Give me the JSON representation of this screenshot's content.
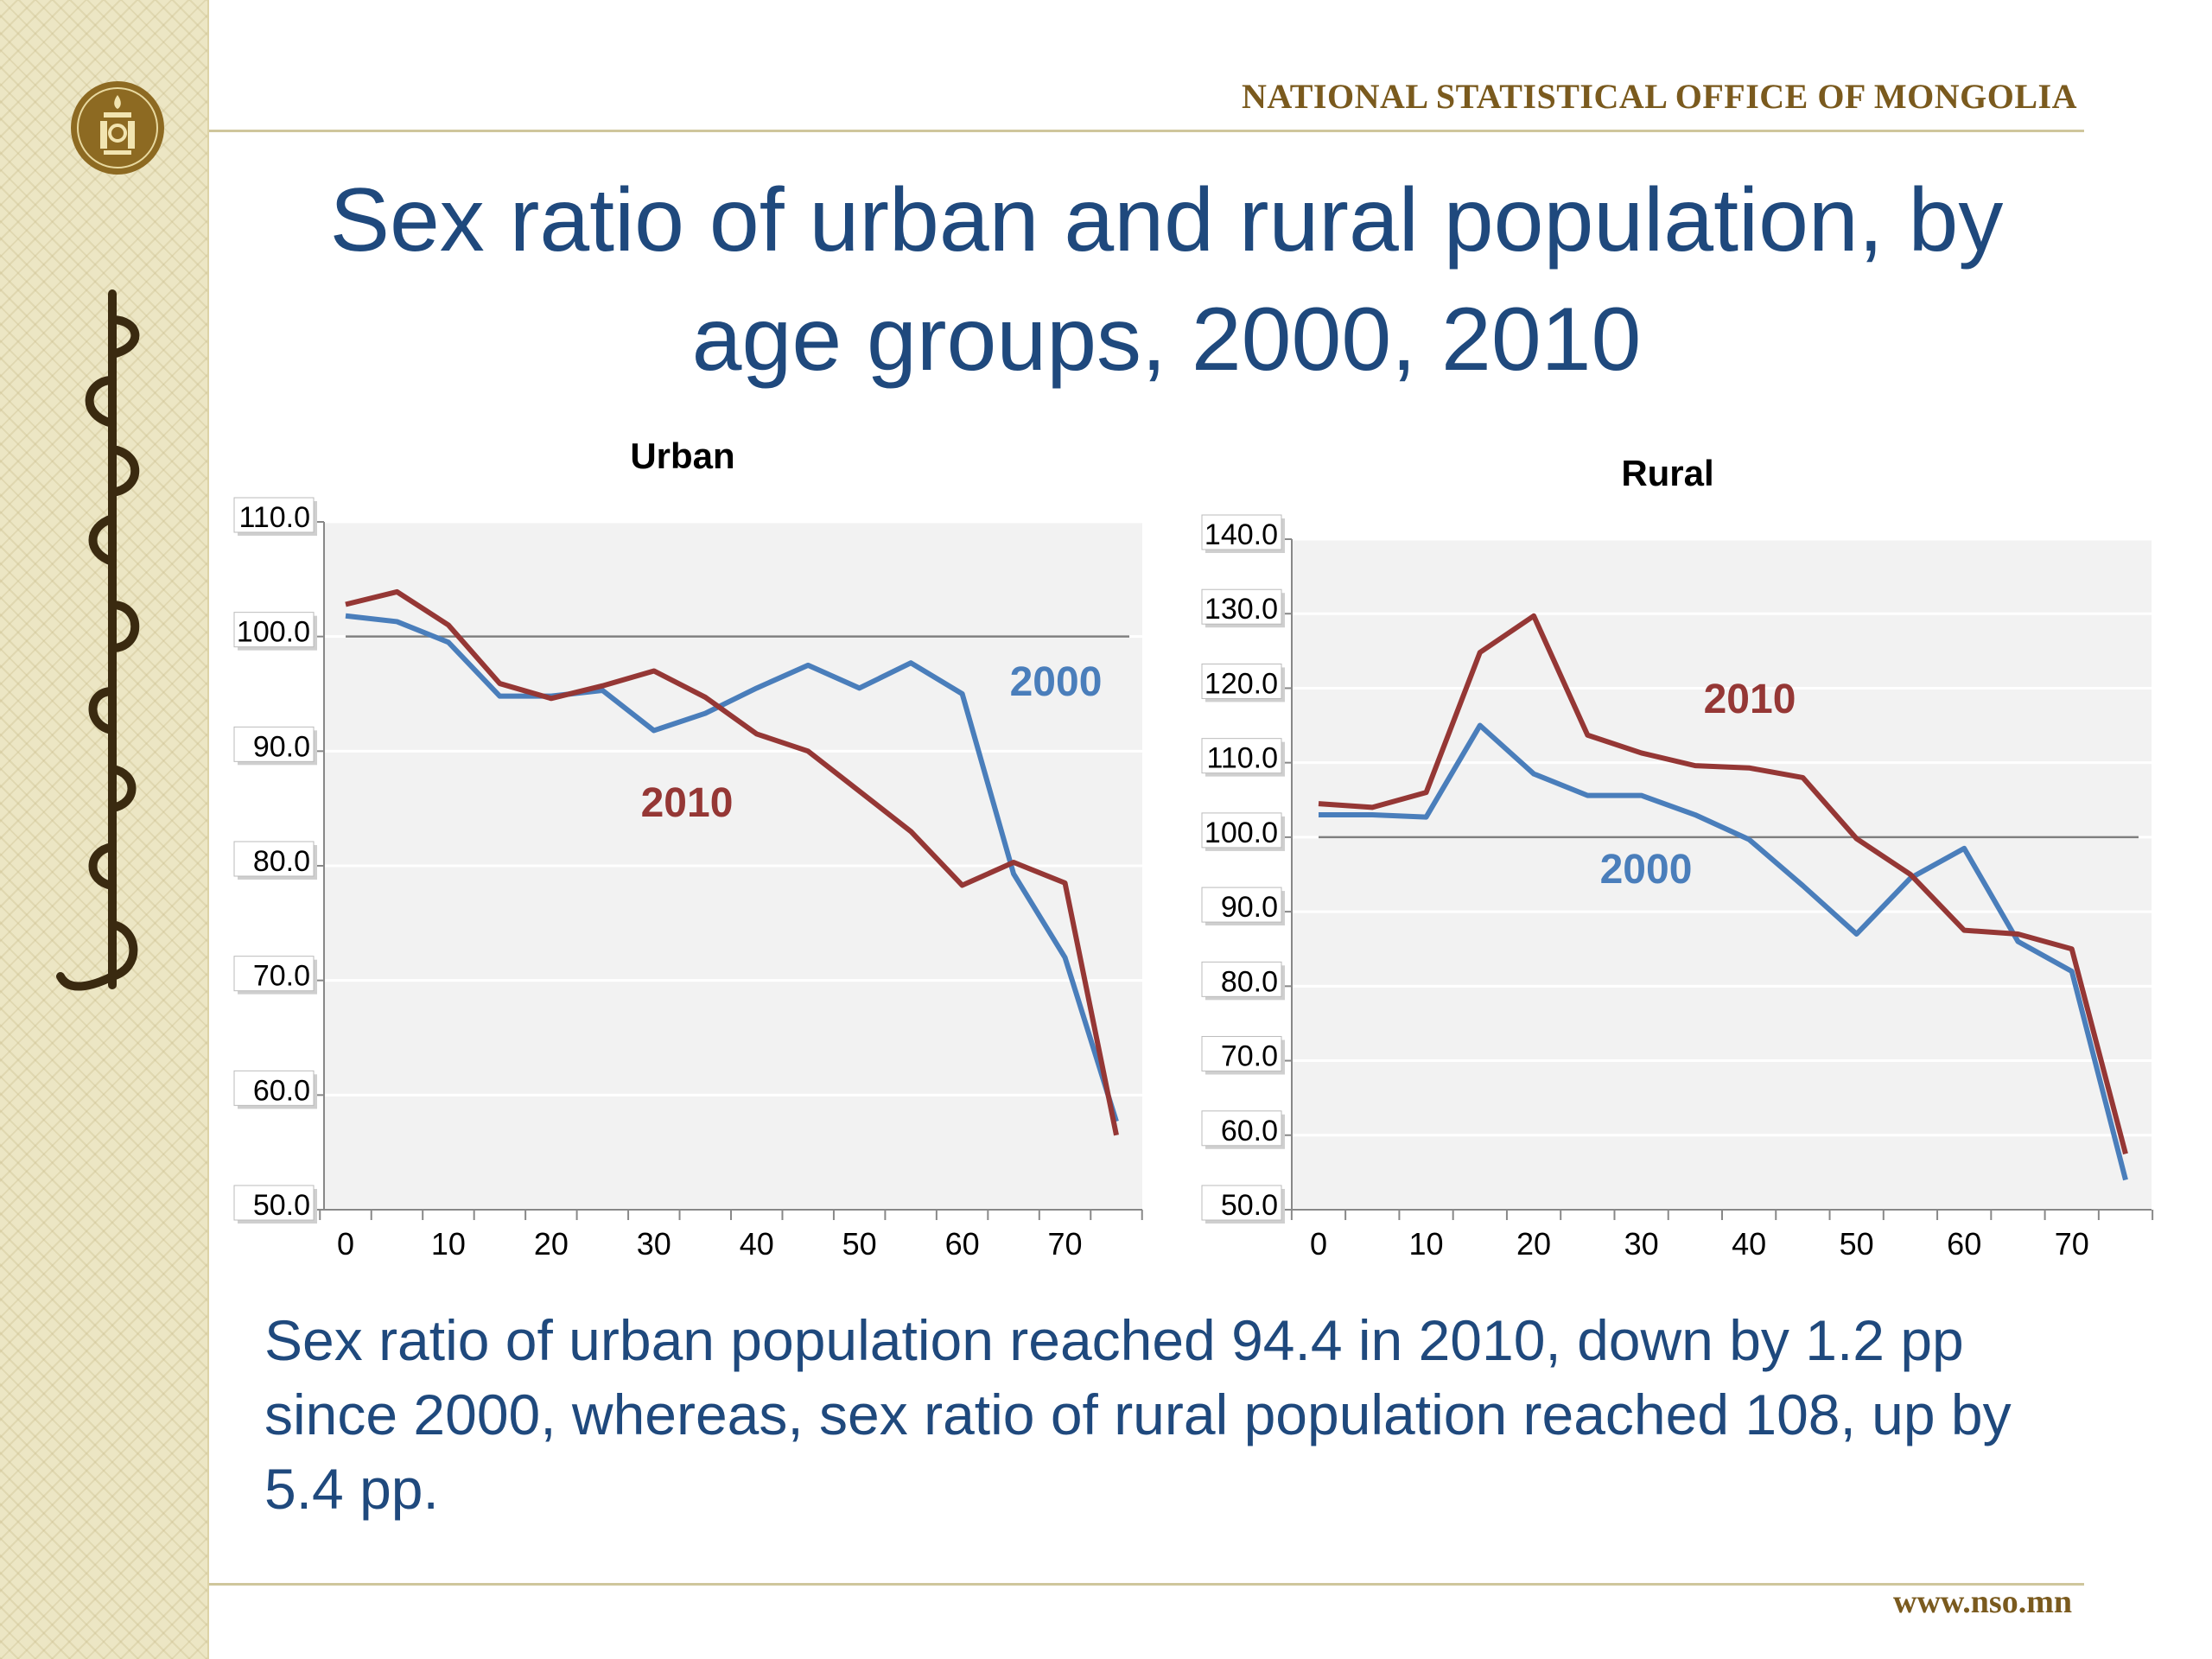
{
  "header": {
    "organization": "NATIONAL STATISTICAL OFFICE OF MONGOLIA",
    "logo_icon": "soyombo-seal-icon",
    "sidebar_decoration": "mongolian-script-ornament"
  },
  "title_line1": "Sex ratio of urban and rural population, by",
  "title_line2": "age groups, 2000, 2010",
  "colors": {
    "series_2000": "#4a7ebb",
    "series_2010": "#953735",
    "text_blue": "#1f497d",
    "gold": "#7a5a1e"
  },
  "chart_data": [
    {
      "type": "line",
      "title": "Urban",
      "x": [
        0,
        5,
        10,
        15,
        20,
        25,
        30,
        35,
        40,
        45,
        50,
        55,
        60,
        65,
        70,
        75
      ],
      "x_ticks": [
        "0",
        "10",
        "20",
        "30",
        "40",
        "50",
        "60",
        "70"
      ],
      "y_ticks": [
        "50.0",
        "60.0",
        "70.0",
        "80.0",
        "90.0",
        "100.0",
        "110.0"
      ],
      "ylim": [
        50,
        110
      ],
      "reference_line": 100,
      "grid": true,
      "series": [
        {
          "name": "2000",
          "color": "#4a7ebb",
          "values": [
            101.8,
            101.3,
            99.5,
            94.8,
            94.8,
            95.3,
            91.8,
            93.3,
            95.5,
            97.5,
            95.5,
            97.7,
            95.0,
            79.3,
            72.0,
            57.7
          ]
        },
        {
          "name": "2010",
          "color": "#953735",
          "values": [
            102.8,
            103.9,
            101.0,
            95.9,
            94.6,
            95.7,
            97.0,
            94.7,
            91.5,
            90.0,
            86.5,
            83.0,
            78.3,
            80.3,
            78.5,
            56.5
          ]
        }
      ]
    },
    {
      "type": "line",
      "title": "Rural",
      "x": [
        0,
        5,
        10,
        15,
        20,
        25,
        30,
        35,
        40,
        45,
        50,
        55,
        60,
        65,
        70,
        75
      ],
      "x_ticks": [
        "0",
        "10",
        "20",
        "30",
        "40",
        "50",
        "60",
        "70"
      ],
      "y_ticks": [
        "50.0",
        "60.0",
        "70.0",
        "80.0",
        "90.0",
        "100.0",
        "110.0",
        "120.0",
        "130.0",
        "140.0"
      ],
      "ylim": [
        50,
        140
      ],
      "reference_line": 100,
      "grid": true,
      "series": [
        {
          "name": "2000",
          "color": "#4a7ebb",
          "values": [
            103.0,
            103.0,
            102.7,
            115.0,
            108.5,
            105.6,
            105.6,
            103.0,
            99.7,
            93.5,
            87.0,
            94.5,
            98.5,
            86.0,
            82.0,
            54.0
          ]
        },
        {
          "name": "2010",
          "color": "#953735",
          "values": [
            104.5,
            104.0,
            106.0,
            124.8,
            129.7,
            113.7,
            111.3,
            109.6,
            109.3,
            108.0,
            99.8,
            95.0,
            87.5,
            87.0,
            85.0,
            57.5
          ]
        }
      ]
    }
  ],
  "summary": "Sex ratio of urban population reached 94.4 in 2010, down by 1.2 pp since 2000, whereas, sex ratio of rural population reached 108, up by 5.4 pp.",
  "website": "www.nso.mn"
}
